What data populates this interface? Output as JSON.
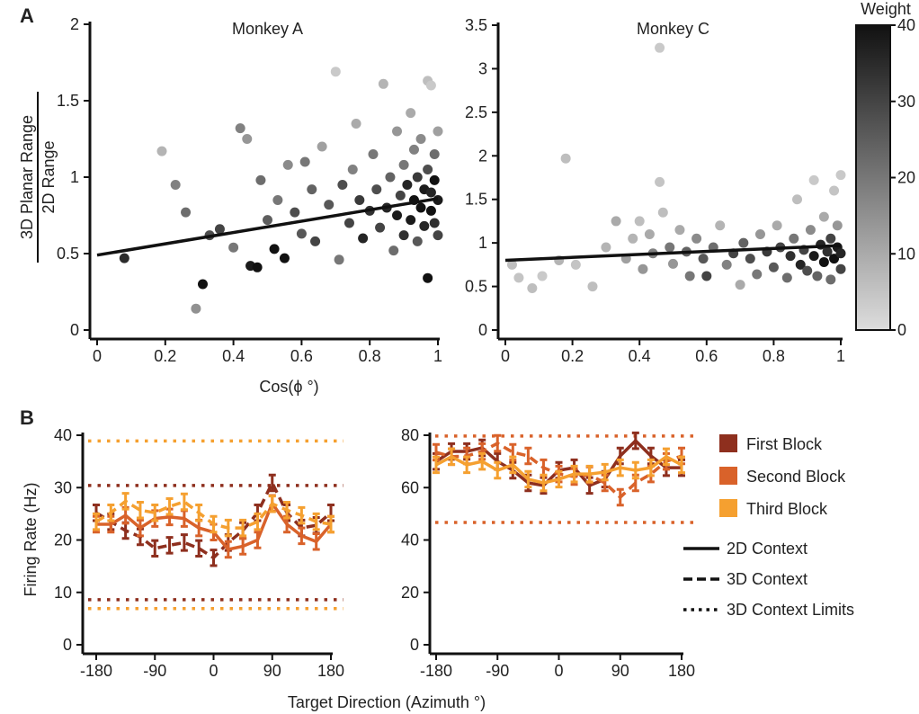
{
  "panel_labels": [
    "A",
    "B"
  ],
  "chart_data": [
    {
      "type": "scatter",
      "title": "Monkey A",
      "xlabel": "Cos(ϕ °)",
      "ylabel": [
        "3D Planar Range",
        "2D Range"
      ],
      "xlim": [
        0,
        1
      ],
      "ylim": [
        0,
        2
      ],
      "xticks": [
        0,
        0.2,
        0.4,
        0.6,
        0.8,
        1
      ],
      "yticks": [
        0,
        0.5,
        1,
        1.5,
        2
      ],
      "color_by": "Weight",
      "fit_line": [
        [
          0,
          0.49
        ],
        [
          1,
          0.86
        ]
      ],
      "points": [
        [
          0.08,
          0.47,
          35
        ],
        [
          0.19,
          1.17,
          8
        ],
        [
          0.23,
          0.95,
          18
        ],
        [
          0.26,
          0.77,
          22
        ],
        [
          0.29,
          0.14,
          15
        ],
        [
          0.31,
          0.3,
          40
        ],
        [
          0.33,
          0.62,
          28
        ],
        [
          0.36,
          0.66,
          30
        ],
        [
          0.4,
          0.54,
          20
        ],
        [
          0.42,
          1.32,
          18
        ],
        [
          0.44,
          1.25,
          14
        ],
        [
          0.45,
          0.42,
          38
        ],
        [
          0.47,
          0.41,
          40
        ],
        [
          0.48,
          0.98,
          22
        ],
        [
          0.5,
          0.72,
          25
        ],
        [
          0.52,
          0.53,
          40
        ],
        [
          0.53,
          0.85,
          20
        ],
        [
          0.55,
          0.47,
          40
        ],
        [
          0.56,
          1.08,
          16
        ],
        [
          0.58,
          0.77,
          28
        ],
        [
          0.6,
          0.63,
          26
        ],
        [
          0.61,
          1.1,
          20
        ],
        [
          0.63,
          0.92,
          24
        ],
        [
          0.64,
          0.58,
          30
        ],
        [
          0.66,
          1.2,
          12
        ],
        [
          0.68,
          0.82,
          26
        ],
        [
          0.7,
          1.69,
          4
        ],
        [
          0.71,
          0.46,
          20
        ],
        [
          0.72,
          0.95,
          28
        ],
        [
          0.74,
          0.7,
          30
        ],
        [
          0.75,
          1.05,
          18
        ],
        [
          0.76,
          1.35,
          10
        ],
        [
          0.77,
          0.85,
          32
        ],
        [
          0.78,
          0.6,
          36
        ],
        [
          0.8,
          0.78,
          34
        ],
        [
          0.81,
          1.15,
          20
        ],
        [
          0.82,
          0.92,
          28
        ],
        [
          0.83,
          0.67,
          30
        ],
        [
          0.84,
          1.61,
          8
        ],
        [
          0.85,
          0.8,
          36
        ],
        [
          0.86,
          1.0,
          24
        ],
        [
          0.87,
          0.52,
          22
        ],
        [
          0.88,
          1.3,
          14
        ],
        [
          0.88,
          0.75,
          38
        ],
        [
          0.89,
          0.88,
          30
        ],
        [
          0.9,
          1.08,
          20
        ],
        [
          0.9,
          0.62,
          34
        ],
        [
          0.91,
          0.95,
          36
        ],
        [
          0.92,
          1.42,
          10
        ],
        [
          0.92,
          0.72,
          38
        ],
        [
          0.93,
          0.85,
          40
        ],
        [
          0.93,
          1.18,
          18
        ],
        [
          0.94,
          0.58,
          26
        ],
        [
          0.94,
          1.0,
          32
        ],
        [
          0.95,
          0.8,
          40
        ],
        [
          0.95,
          1.25,
          16
        ],
        [
          0.96,
          0.68,
          36
        ],
        [
          0.96,
          0.92,
          38
        ],
        [
          0.97,
          1.63,
          6
        ],
        [
          0.97,
          0.34,
          40
        ],
        [
          0.97,
          1.05,
          28
        ],
        [
          0.98,
          0.78,
          40
        ],
        [
          0.98,
          1.6,
          4
        ],
        [
          0.98,
          0.9,
          36
        ],
        [
          0.99,
          1.15,
          22
        ],
        [
          0.99,
          0.7,
          34
        ],
        [
          0.99,
          0.98,
          40
        ],
        [
          1.0,
          0.85,
          38
        ],
        [
          1.0,
          1.3,
          12
        ],
        [
          1.0,
          0.62,
          30
        ]
      ]
    },
    {
      "type": "scatter",
      "title": "Monkey C",
      "xlim": [
        0,
        1
      ],
      "ylim": [
        0,
        3.5
      ],
      "xticks": [
        0,
        0.2,
        0.4,
        0.6,
        0.8,
        1
      ],
      "yticks": [
        0,
        0.5,
        1,
        1.5,
        2,
        2.5,
        3,
        3.5
      ],
      "color_by": "Weight",
      "fit_line": [
        [
          0,
          0.8
        ],
        [
          1,
          0.97
        ]
      ],
      "points": [
        [
          0.02,
          0.75,
          6
        ],
        [
          0.04,
          0.6,
          5
        ],
        [
          0.08,
          0.48,
          6
        ],
        [
          0.11,
          0.62,
          4
        ],
        [
          0.16,
          0.8,
          8
        ],
        [
          0.18,
          1.97,
          6
        ],
        [
          0.21,
          0.75,
          5
        ],
        [
          0.26,
          0.5,
          6
        ],
        [
          0.3,
          0.95,
          8
        ],
        [
          0.33,
          1.25,
          10
        ],
        [
          0.36,
          0.82,
          12
        ],
        [
          0.38,
          1.05,
          8
        ],
        [
          0.4,
          1.25,
          6
        ],
        [
          0.41,
          0.7,
          14
        ],
        [
          0.43,
          1.1,
          10
        ],
        [
          0.44,
          0.88,
          18
        ],
        [
          0.46,
          3.24,
          4
        ],
        [
          0.46,
          1.7,
          5
        ],
        [
          0.47,
          1.35,
          6
        ],
        [
          0.49,
          0.95,
          20
        ],
        [
          0.5,
          0.76,
          14
        ],
        [
          0.52,
          1.15,
          10
        ],
        [
          0.54,
          0.9,
          24
        ],
        [
          0.55,
          0.62,
          20
        ],
        [
          0.57,
          1.05,
          16
        ],
        [
          0.59,
          0.82,
          26
        ],
        [
          0.6,
          0.62,
          30
        ],
        [
          0.62,
          0.95,
          22
        ],
        [
          0.64,
          1.2,
          8
        ],
        [
          0.66,
          0.75,
          18
        ],
        [
          0.68,
          0.88,
          30
        ],
        [
          0.7,
          0.52,
          10
        ],
        [
          0.71,
          1.0,
          24
        ],
        [
          0.73,
          0.82,
          28
        ],
        [
          0.75,
          0.64,
          20
        ],
        [
          0.76,
          1.1,
          14
        ],
        [
          0.78,
          0.9,
          32
        ],
        [
          0.8,
          0.72,
          26
        ],
        [
          0.81,
          1.2,
          10
        ],
        [
          0.82,
          0.95,
          30
        ],
        [
          0.84,
          0.6,
          22
        ],
        [
          0.85,
          0.85,
          34
        ],
        [
          0.86,
          1.05,
          20
        ],
        [
          0.87,
          1.5,
          6
        ],
        [
          0.88,
          0.75,
          36
        ],
        [
          0.89,
          0.92,
          30
        ],
        [
          0.9,
          0.68,
          28
        ],
        [
          0.91,
          1.15,
          16
        ],
        [
          0.92,
          0.85,
          38
        ],
        [
          0.92,
          1.72,
          4
        ],
        [
          0.93,
          0.62,
          24
        ],
        [
          0.94,
          0.98,
          36
        ],
        [
          0.95,
          0.78,
          40
        ],
        [
          0.95,
          1.3,
          10
        ],
        [
          0.96,
          0.9,
          34
        ],
        [
          0.97,
          1.05,
          30
        ],
        [
          0.97,
          0.58,
          22
        ],
        [
          0.98,
          0.82,
          40
        ],
        [
          0.98,
          1.6,
          5
        ],
        [
          0.99,
          0.95,
          38
        ],
        [
          0.99,
          1.2,
          14
        ],
        [
          1.0,
          0.88,
          36
        ],
        [
          1.0,
          1.78,
          4
        ],
        [
          1.0,
          0.7,
          30
        ]
      ]
    },
    {
      "type": "line",
      "xlabel": "Target Direction (Azimuth °)",
      "ylabel": "Firing Rate (Hz)",
      "xlim": [
        -180,
        180
      ],
      "ylim": [
        0,
        40
      ],
      "xticks": [
        -180,
        -90,
        0,
        90,
        180
      ],
      "yticks": [
        0,
        10,
        20,
        30,
        40
      ],
      "x": [
        -180,
        -157.5,
        -135,
        -112.5,
        -90,
        -67.5,
        -45,
        -22.5,
        0,
        22.5,
        45,
        67.5,
        90,
        112.5,
        135,
        157.5,
        180
      ],
      "error": 1.5,
      "series": [
        {
          "block": 0,
          "context": "3D",
          "values": [
            25.2,
            23.5,
            21.8,
            20.6,
            18.4,
            19,
            19.5,
            18.4,
            16.6,
            19.5,
            21.8,
            25.2,
            30.9,
            25.2,
            22.3,
            22.8,
            25.2
          ]
        },
        {
          "block": 1,
          "context": "2D",
          "values": [
            23,
            23,
            24.7,
            22.3,
            24.1,
            24.4,
            24.1,
            22.3,
            21.5,
            18.2,
            18.8,
            20,
            27,
            23,
            20.8,
            19.7,
            23
          ]
        },
        {
          "block": 2,
          "context": "3D",
          "values": [
            23.5,
            25.2,
            27.4,
            25.7,
            25.2,
            26.4,
            27.3,
            25.2,
            23,
            22.3,
            22.3,
            23.5,
            26.9,
            25.7,
            24.7,
            23.5,
            23
          ]
        }
      ],
      "limits": [
        {
          "block": 2,
          "value": 38.9
        },
        {
          "block": 0,
          "value": 30.4
        },
        {
          "block": 0,
          "value": 8.6
        },
        {
          "block": 2,
          "value": 6.9
        }
      ]
    },
    {
      "type": "line",
      "xlim": [
        -180,
        180
      ],
      "ylim": [
        0,
        80
      ],
      "xticks": [
        -180,
        -90,
        0,
        90,
        180
      ],
      "yticks": [
        0,
        20,
        40,
        60,
        80
      ],
      "x": [
        -180,
        -157.5,
        -135,
        -112.5,
        -90,
        -67.5,
        -45,
        -22.5,
        0,
        22.5,
        45,
        67.5,
        90,
        112.5,
        135,
        157.5,
        180
      ],
      "error": 3,
      "series": [
        {
          "block": 0,
          "context": "2D",
          "values": [
            70,
            73.8,
            73.8,
            75.2,
            70,
            66.6,
            61.8,
            60.8,
            66.6,
            67.6,
            60.8,
            63.2,
            72.1,
            77.9,
            72.1,
            67.6,
            67.6
          ]
        },
        {
          "block": 1,
          "context": "3D",
          "values": [
            73.5,
            71.8,
            72.1,
            73.8,
            76.9,
            73.5,
            72.1,
            67.6,
            65.2,
            64.2,
            64.9,
            61.8,
            56.3,
            61.8,
            65.2,
            70,
            72.1
          ]
        },
        {
          "block": 2,
          "context": "2D",
          "values": [
            68.7,
            71.8,
            68.7,
            70,
            66.6,
            68.7,
            63.2,
            61.8,
            63.2,
            65.2,
            65.2,
            65.9,
            67.6,
            66.6,
            67.6,
            71.8,
            68.7
          ]
        }
      ],
      "limits": [
        {
          "block": 1,
          "value": 79.7
        },
        {
          "block": 1,
          "value": 46.7
        }
      ]
    }
  ],
  "colorbar": {
    "title": "Weight",
    "range": [
      0,
      40
    ],
    "ticks": [
      0,
      10,
      20,
      30,
      40
    ],
    "colors": [
      "#dddddd",
      "#111111"
    ]
  },
  "legend": {
    "blocks": [
      {
        "label": "First Block",
        "color": "#8e2f1e"
      },
      {
        "label": "Second Block",
        "color": "#d9622a"
      },
      {
        "label": "Third Block",
        "color": "#f5a030"
      }
    ],
    "styles": [
      {
        "label": "2D Context",
        "dash": "solid"
      },
      {
        "label": "3D Context",
        "dash": "dashed"
      },
      {
        "label": "3D Context Limits",
        "dash": "dotted"
      }
    ]
  }
}
